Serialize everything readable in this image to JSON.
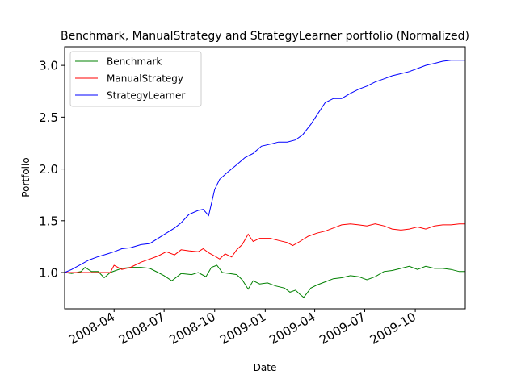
{
  "chart_data": {
    "type": "line",
    "title": "Benchmark, ManualStrategy and StrategyLearner portfolio (Normalized)",
    "xlabel": "Date",
    "ylabel": "Portfolio",
    "x_range": [
      "2008-01-02",
      "2009-12-31"
    ],
    "ylim": [
      0.65,
      3.18
    ],
    "x_ticks": [
      {
        "date": "2008-04-01",
        "label": "2008-04"
      },
      {
        "date": "2008-07-01",
        "label": "2008-07"
      },
      {
        "date": "2008-10-01",
        "label": "2008-10"
      },
      {
        "date": "2009-01-01",
        "label": "2009-01"
      },
      {
        "date": "2009-04-01",
        "label": "2009-04"
      },
      {
        "date": "2009-07-01",
        "label": "2009-07"
      },
      {
        "date": "2009-10-01",
        "label": "2009-10"
      }
    ],
    "y_ticks": [
      {
        "value": 1.0,
        "label": "1.0"
      },
      {
        "value": 1.5,
        "label": "1.5"
      },
      {
        "value": 2.0,
        "label": "2.0"
      },
      {
        "value": 2.5,
        "label": "2.5"
      },
      {
        "value": 3.0,
        "label": "3.0"
      }
    ],
    "grid": false,
    "legend_position": "top-left",
    "series": [
      {
        "name": "Benchmark",
        "color": "#008000",
        "points": [
          [
            "2008-01-02",
            1.0
          ],
          [
            "2008-01-15",
            0.99
          ],
          [
            "2008-02-01",
            1.01
          ],
          [
            "2008-02-08",
            1.05
          ],
          [
            "2008-02-20",
            1.01
          ],
          [
            "2008-03-03",
            1.01
          ],
          [
            "2008-03-14",
            0.95
          ],
          [
            "2008-03-25",
            1.0
          ],
          [
            "2008-04-04",
            1.02
          ],
          [
            "2008-04-15",
            1.04
          ],
          [
            "2008-05-01",
            1.05
          ],
          [
            "2008-05-20",
            1.05
          ],
          [
            "2008-06-05",
            1.04
          ],
          [
            "2008-06-20",
            1.0
          ],
          [
            "2008-07-01",
            0.97
          ],
          [
            "2008-07-15",
            0.92
          ],
          [
            "2008-08-01",
            0.99
          ],
          [
            "2008-08-20",
            0.98
          ],
          [
            "2008-09-01",
            1.0
          ],
          [
            "2008-09-15",
            0.96
          ],
          [
            "2008-09-25",
            1.05
          ],
          [
            "2008-10-05",
            1.07
          ],
          [
            "2008-10-15",
            1.0
          ],
          [
            "2008-10-28",
            0.99
          ],
          [
            "2008-11-10",
            0.98
          ],
          [
            "2008-11-20",
            0.93
          ],
          [
            "2008-12-01",
            0.84
          ],
          [
            "2008-12-10",
            0.92
          ],
          [
            "2008-12-22",
            0.89
          ],
          [
            "2009-01-05",
            0.9
          ],
          [
            "2009-01-20",
            0.87
          ],
          [
            "2009-02-05",
            0.85
          ],
          [
            "2009-02-15",
            0.81
          ],
          [
            "2009-02-25",
            0.83
          ],
          [
            "2009-03-05",
            0.79
          ],
          [
            "2009-03-12",
            0.76
          ],
          [
            "2009-03-25",
            0.85
          ],
          [
            "2009-04-05",
            0.88
          ],
          [
            "2009-04-20",
            0.91
          ],
          [
            "2009-05-05",
            0.94
          ],
          [
            "2009-05-20",
            0.95
          ],
          [
            "2009-06-05",
            0.97
          ],
          [
            "2009-06-20",
            0.96
          ],
          [
            "2009-07-05",
            0.93
          ],
          [
            "2009-07-20",
            0.96
          ],
          [
            "2009-08-05",
            1.01
          ],
          [
            "2009-08-20",
            1.02
          ],
          [
            "2009-09-05",
            1.04
          ],
          [
            "2009-09-20",
            1.06
          ],
          [
            "2009-10-05",
            1.03
          ],
          [
            "2009-10-20",
            1.06
          ],
          [
            "2009-11-05",
            1.04
          ],
          [
            "2009-11-20",
            1.04
          ],
          [
            "2009-12-05",
            1.03
          ],
          [
            "2009-12-20",
            1.01
          ],
          [
            "2009-12-31",
            1.01
          ]
        ]
      },
      {
        "name": "ManualStrategy",
        "color": "#ff0000",
        "points": [
          [
            "2008-01-02",
            1.0
          ],
          [
            "2008-02-01",
            1.0
          ],
          [
            "2008-03-01",
            1.0
          ],
          [
            "2008-03-25",
            1.0
          ],
          [
            "2008-04-01",
            1.07
          ],
          [
            "2008-04-15",
            1.03
          ],
          [
            "2008-05-01",
            1.05
          ],
          [
            "2008-05-20",
            1.1
          ],
          [
            "2008-06-05",
            1.13
          ],
          [
            "2008-06-20",
            1.16
          ],
          [
            "2008-07-05",
            1.2
          ],
          [
            "2008-07-20",
            1.17
          ],
          [
            "2008-08-01",
            1.22
          ],
          [
            "2008-08-15",
            1.21
          ],
          [
            "2008-09-01",
            1.2
          ],
          [
            "2008-09-10",
            1.23
          ],
          [
            "2008-09-20",
            1.19
          ],
          [
            "2008-10-01",
            1.16
          ],
          [
            "2008-10-10",
            1.13
          ],
          [
            "2008-10-20",
            1.18
          ],
          [
            "2008-11-01",
            1.15
          ],
          [
            "2008-11-10",
            1.22
          ],
          [
            "2008-11-20",
            1.27
          ],
          [
            "2008-12-01",
            1.37
          ],
          [
            "2008-12-10",
            1.3
          ],
          [
            "2008-12-22",
            1.33
          ],
          [
            "2009-01-10",
            1.33
          ],
          [
            "2009-01-25",
            1.31
          ],
          [
            "2009-02-10",
            1.29
          ],
          [
            "2009-02-20",
            1.26
          ],
          [
            "2009-03-05",
            1.3
          ],
          [
            "2009-03-20",
            1.35
          ],
          [
            "2009-04-05",
            1.38
          ],
          [
            "2009-04-20",
            1.4
          ],
          [
            "2009-05-05",
            1.43
          ],
          [
            "2009-05-20",
            1.46
          ],
          [
            "2009-06-05",
            1.47
          ],
          [
            "2009-06-20",
            1.46
          ],
          [
            "2009-07-05",
            1.45
          ],
          [
            "2009-07-20",
            1.47
          ],
          [
            "2009-08-05",
            1.45
          ],
          [
            "2009-08-20",
            1.42
          ],
          [
            "2009-09-05",
            1.41
          ],
          [
            "2009-09-20",
            1.42
          ],
          [
            "2009-10-05",
            1.44
          ],
          [
            "2009-10-20",
            1.42
          ],
          [
            "2009-11-05",
            1.45
          ],
          [
            "2009-11-20",
            1.46
          ],
          [
            "2009-12-05",
            1.46
          ],
          [
            "2009-12-20",
            1.47
          ],
          [
            "2009-12-31",
            1.47
          ]
        ]
      },
      {
        "name": "StrategyLearner",
        "color": "#0000ff",
        "points": [
          [
            "2008-01-02",
            1.0
          ],
          [
            "2008-01-15",
            1.03
          ],
          [
            "2008-02-01",
            1.08
          ],
          [
            "2008-02-15",
            1.12
          ],
          [
            "2008-03-01",
            1.15
          ],
          [
            "2008-03-20",
            1.18
          ],
          [
            "2008-04-01",
            1.2
          ],
          [
            "2008-04-15",
            1.23
          ],
          [
            "2008-05-01",
            1.24
          ],
          [
            "2008-05-20",
            1.27
          ],
          [
            "2008-06-05",
            1.28
          ],
          [
            "2008-06-20",
            1.33
          ],
          [
            "2008-07-05",
            1.38
          ],
          [
            "2008-07-20",
            1.43
          ],
          [
            "2008-08-01",
            1.48
          ],
          [
            "2008-08-15",
            1.56
          ],
          [
            "2008-09-01",
            1.6
          ],
          [
            "2008-09-10",
            1.61
          ],
          [
            "2008-09-20",
            1.55
          ],
          [
            "2008-10-01",
            1.8
          ],
          [
            "2008-10-10",
            1.9
          ],
          [
            "2008-10-25",
            1.97
          ],
          [
            "2008-11-10",
            2.04
          ],
          [
            "2008-11-25",
            2.11
          ],
          [
            "2008-12-10",
            2.15
          ],
          [
            "2008-12-25",
            2.22
          ],
          [
            "2009-01-10",
            2.24
          ],
          [
            "2009-01-25",
            2.26
          ],
          [
            "2009-02-10",
            2.26
          ],
          [
            "2009-02-25",
            2.28
          ],
          [
            "2009-03-10",
            2.33
          ],
          [
            "2009-03-25",
            2.43
          ],
          [
            "2009-04-05",
            2.52
          ],
          [
            "2009-04-20",
            2.64
          ],
          [
            "2009-05-05",
            2.68
          ],
          [
            "2009-05-20",
            2.68
          ],
          [
            "2009-06-05",
            2.73
          ],
          [
            "2009-06-20",
            2.77
          ],
          [
            "2009-07-05",
            2.8
          ],
          [
            "2009-07-20",
            2.84
          ],
          [
            "2009-08-05",
            2.87
          ],
          [
            "2009-08-20",
            2.9
          ],
          [
            "2009-09-05",
            2.92
          ],
          [
            "2009-09-20",
            2.94
          ],
          [
            "2009-10-05",
            2.97
          ],
          [
            "2009-10-20",
            3.0
          ],
          [
            "2009-11-05",
            3.02
          ],
          [
            "2009-11-20",
            3.04
          ],
          [
            "2009-12-05",
            3.05
          ],
          [
            "2009-12-20",
            3.05
          ],
          [
            "2009-12-31",
            3.05
          ]
        ]
      }
    ]
  }
}
